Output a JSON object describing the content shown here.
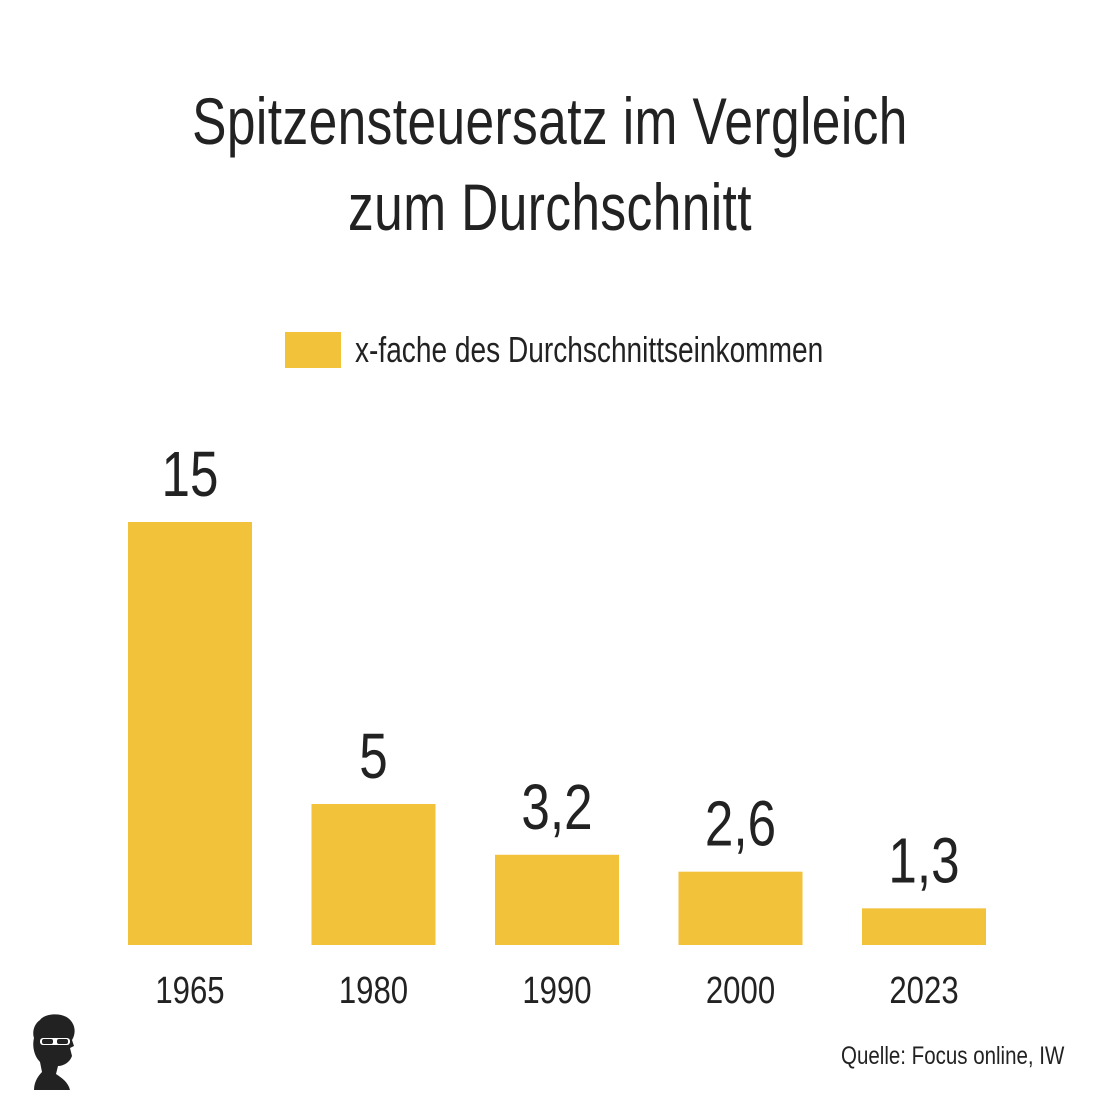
{
  "chart_data": {
    "type": "bar",
    "title": "Spitzensteuersatz im Vergleich zum Durchschnitt",
    "title_lines": [
      "Spitzensteuersatz im Vergleich",
      "zum Durchschnitt"
    ],
    "categories": [
      "1965",
      "1980",
      "1990",
      "2000",
      "2023"
    ],
    "series": [
      {
        "name": "x-fache des Durchschnittseinkommen",
        "values": [
          15,
          5,
          3.2,
          2.6,
          1.3
        ],
        "labels": [
          "15",
          "5",
          "3,2",
          "2,6",
          "1,3"
        ],
        "color": "#F2C23A"
      }
    ],
    "xlabel": "",
    "ylabel": "",
    "ylim": [
      0,
      15
    ],
    "grid": false,
    "legend_position": "top-center"
  },
  "source": "Quelle: Focus online, IW",
  "logo_icon": "person-with-sunglasses-logo-icon"
}
